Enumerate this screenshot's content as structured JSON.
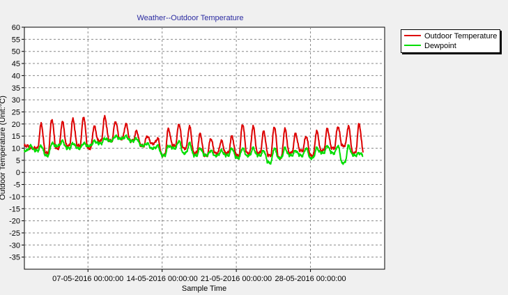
{
  "chart_data": {
    "type": "line",
    "title": "Weather--Outdoor Temperature",
    "xlabel": "Sample Time",
    "ylabel": "Outdoor Temperature (Unit:°C)",
    "ylim": [
      -40,
      60
    ],
    "yticks": [
      60,
      55,
      50,
      45,
      40,
      35,
      30,
      25,
      20,
      15,
      10,
      5,
      0,
      -5,
      -10,
      -15,
      -20,
      -25,
      -30,
      -35
    ],
    "x_start": "01-05-2016 00:00:00",
    "x_end": "04-06-2016 00:00:00",
    "xticks": [
      "07-05-2016 00:00:00",
      "14-05-2016 00:00:00",
      "21-05-2016 00:00:00",
      "28-05-2016 00:00:00"
    ],
    "grid": true,
    "legend_position": "right",
    "series": [
      {
        "name": "Outdoor Temperature",
        "color": "#dd0000",
        "daily_high": [
          10,
          20,
          22,
          21,
          22,
          23,
          19,
          23,
          21,
          20,
          17,
          15,
          14,
          18,
          20,
          19,
          16,
          14,
          13,
          15,
          20,
          19,
          17,
          19,
          18,
          16,
          15,
          17,
          18,
          19,
          19,
          20
        ],
        "daily_low": [
          11,
          10,
          8,
          10,
          11,
          11,
          10,
          13,
          13,
          14,
          13,
          11,
          12,
          7,
          11,
          10,
          8,
          7,
          8,
          8,
          7,
          8,
          8,
          7,
          6,
          8,
          9,
          7,
          9,
          10,
          11,
          8
        ]
      },
      {
        "name": "Dewpoint",
        "color": "#00dd00",
        "daily_high": [
          11,
          11,
          12,
          13,
          12,
          12,
          13,
          14,
          15,
          15,
          14,
          12,
          11,
          11,
          13,
          12,
          10,
          9,
          9,
          10,
          10,
          10,
          9,
          10,
          10,
          9,
          10,
          10,
          11,
          11,
          11,
          8
        ],
        "daily_low": [
          9,
          9,
          7,
          11,
          10,
          10,
          11,
          12,
          13,
          14,
          13,
          11,
          10,
          7,
          10,
          8,
          7,
          7,
          7,
          7,
          6,
          7,
          7,
          4,
          6,
          7,
          7,
          6,
          8,
          8,
          4,
          7
        ]
      }
    ]
  }
}
